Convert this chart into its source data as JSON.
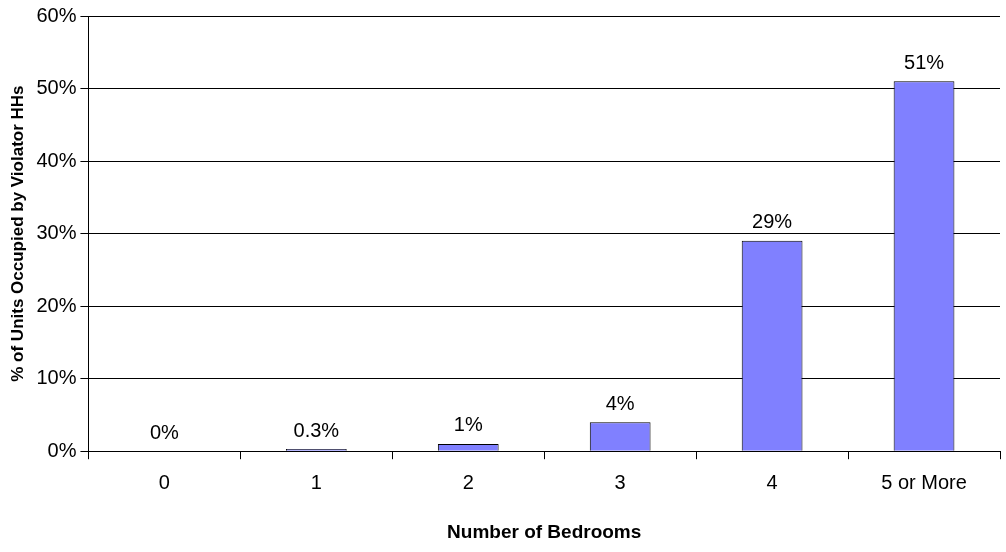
{
  "chart_data": {
    "type": "bar",
    "xlabel": "Number of Bedrooms",
    "ylabel": "% of Units Occupied by Violator HHs",
    "categories": [
      "0",
      "1",
      "2",
      "3",
      "4",
      "5 or More"
    ],
    "values": [
      0,
      0.3,
      1,
      4,
      29,
      51
    ],
    "value_labels": [
      "0%",
      "0.3%",
      "1%",
      "4%",
      "29%",
      "51%"
    ],
    "color": "#8080ff",
    "ylim": [
      0,
      60
    ],
    "yticks": [
      {
        "value": 0,
        "label": "0%"
      },
      {
        "value": 10,
        "label": "10%"
      },
      {
        "value": 20,
        "label": "20%"
      },
      {
        "value": 30,
        "label": "30%"
      },
      {
        "value": 40,
        "label": "40%"
      },
      {
        "value": 50,
        "label": "50%"
      },
      {
        "value": 60,
        "label": "60%"
      }
    ],
    "grid": "y",
    "legend": false
  }
}
